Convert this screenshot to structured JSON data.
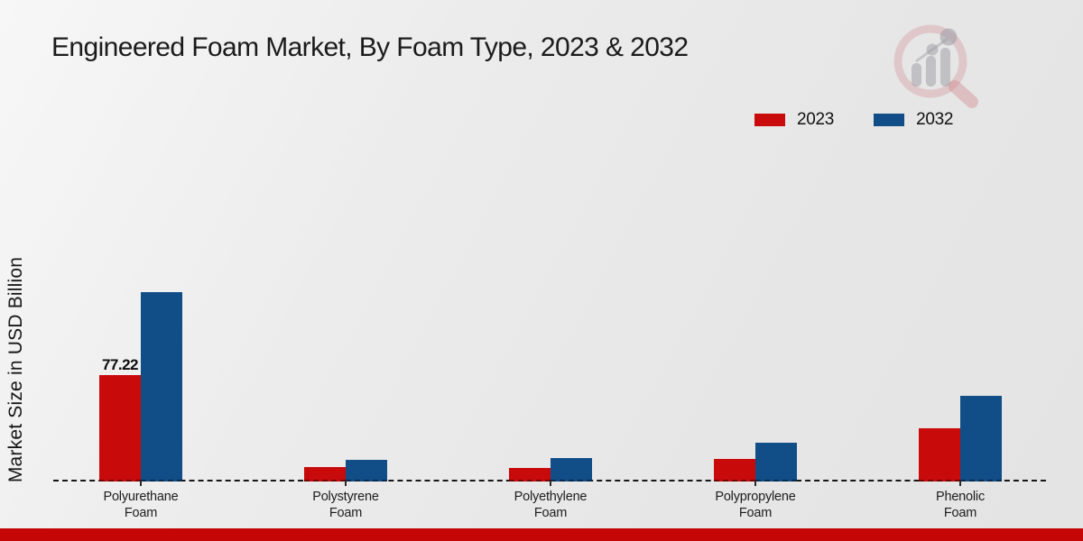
{
  "page": {
    "title": "Engineered Foam Market, By Foam Type, 2023 & 2032",
    "y_axis_label": "Market Size in USD Billion",
    "footer_bar_color": "#c40606",
    "background_color": "#e9e9e9",
    "watermark_icon": "magnifier-bar-chart-logo"
  },
  "legend": {
    "items": [
      {
        "label": "2023",
        "color": "#c90a0a"
      },
      {
        "label": "2032",
        "color": "#114d87"
      }
    ]
  },
  "chart_data": {
    "type": "bar",
    "title": "Engineered Foam Market, By Foam Type, 2023 & 2032",
    "xlabel": "",
    "ylabel": "Market Size in USD Billion",
    "categories": [
      "Polyurethane Foam",
      "Polystyrene Foam",
      "Polyethylene Foam",
      "Polypropylene Foam",
      "Phenolic Foam"
    ],
    "tick_label_lines": [
      [
        "Polyurethane",
        "Foam"
      ],
      [
        "Polystyrene",
        "Foam"
      ],
      [
        "Polyethylene",
        "Foam"
      ],
      [
        "Polypropylene",
        "Foam"
      ],
      [
        "Phenolic",
        "Foam"
      ]
    ],
    "series": [
      {
        "name": "2023",
        "color": "#c90a0a",
        "values": [
          77.22,
          10.5,
          9.8,
          16.4,
          38.6
        ]
      },
      {
        "name": "2032",
        "color": "#114d87",
        "values": [
          137.4,
          15.7,
          17.0,
          28.1,
          62.2
        ]
      }
    ],
    "data_labels": [
      {
        "series": "2023",
        "category": "Polyurethane Foam",
        "text": "77.22"
      }
    ],
    "ylim": [
      0,
      150
    ],
    "grid": false,
    "legend_position": "top-right",
    "baseline_style": "dashed"
  }
}
